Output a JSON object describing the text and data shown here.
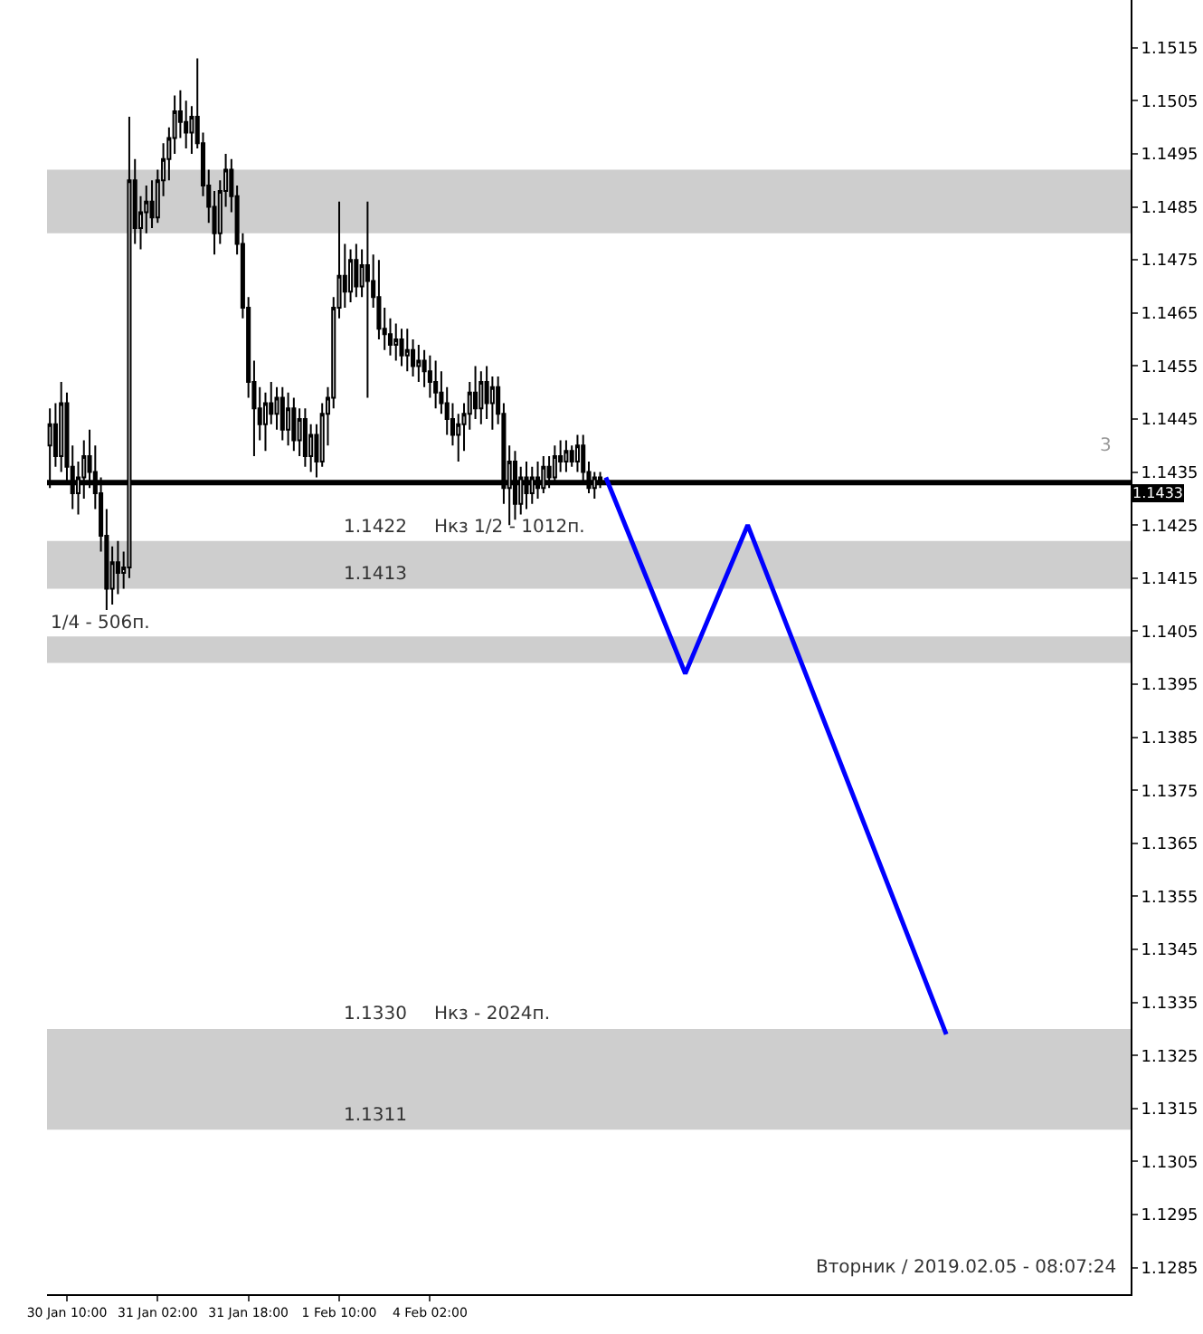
{
  "chart_data": {
    "type": "candlestick",
    "categories": [
      null,
      null,
      null,
      "30 Jan 10:00",
      null,
      null,
      null,
      null,
      null,
      null,
      null,
      null,
      null,
      null,
      null,
      null,
      null,
      null,
      null,
      "31 Jan 02:00",
      null,
      null,
      null,
      null,
      null,
      null,
      null,
      null,
      null,
      null,
      null,
      null,
      null,
      null,
      null,
      "31 Jan 18:00",
      null,
      null,
      null,
      null,
      null,
      null,
      null,
      null,
      null,
      null,
      null,
      null,
      null,
      null,
      null,
      "1 Feb 10:00",
      null,
      null,
      null,
      null,
      null,
      null,
      null,
      null,
      null,
      null,
      null,
      null,
      null,
      null,
      null,
      "4 Feb 02:00",
      null,
      null,
      null,
      null,
      null,
      null,
      null,
      null,
      null,
      null,
      null,
      null,
      null,
      null,
      null,
      null,
      null,
      null,
      null,
      null,
      null,
      null,
      null,
      null,
      null,
      null,
      null,
      null,
      null,
      null,
      null,
      null,
      null,
      null,
      null,
      null,
      null,
      null,
      null,
      null,
      null,
      null,
      null,
      null,
      null,
      null,
      null,
      null,
      null,
      null,
      null,
      null,
      null,
      null,
      null,
      null,
      null,
      null,
      null,
      null,
      null,
      null,
      null,
      null,
      null,
      null,
      null,
      null,
      null,
      null,
      null,
      null,
      null,
      null,
      null,
      null,
      null,
      null,
      null,
      null,
      null,
      null,
      null,
      null,
      null,
      null,
      null,
      null,
      null,
      null,
      null,
      null,
      null,
      null,
      null,
      null,
      null,
      null,
      null,
      null,
      null,
      null,
      null,
      null,
      null,
      null,
      null,
      null,
      null,
      null,
      null,
      null,
      null,
      null,
      null,
      null,
      null,
      null,
      null,
      null,
      null,
      null,
      null
    ],
    "ylim": [
      1.128,
      1.1524
    ],
    "yticks": [
      1.1285,
      1.1295,
      1.1305,
      1.1315,
      1.1325,
      1.1335,
      1.1345,
      1.1355,
      1.1365,
      1.1375,
      1.1385,
      1.1395,
      1.1405,
      1.1415,
      1.1425,
      1.1435,
      1.1445,
      1.1455,
      1.1465,
      1.1475,
      1.1485,
      1.1495,
      1.1505,
      1.1515
    ],
    "grid": false,
    "series": [
      {
        "color": "#000000",
        "ohlc": [
          [
            1.144,
            1.1447,
            1.1432,
            1.1444
          ],
          [
            1.1444,
            1.1448,
            1.1436,
            1.1438
          ],
          [
            1.1438,
            1.1452,
            1.1435,
            1.1448
          ],
          [
            1.1448,
            1.145,
            1.1433,
            1.1436
          ],
          [
            1.1436,
            1.144,
            1.1428,
            1.1431
          ],
          [
            1.1431,
            1.1437,
            1.1427,
            1.1434
          ],
          [
            1.1434,
            1.1441,
            1.143,
            1.1438
          ],
          [
            1.1438,
            1.1443,
            1.1432,
            1.1435
          ],
          [
            1.1435,
            1.144,
            1.1428,
            1.1431
          ],
          [
            1.1431,
            1.1434,
            1.142,
            1.1423
          ],
          [
            1.1423,
            1.1428,
            1.1409,
            1.1413
          ],
          [
            1.1413,
            1.1421,
            1.141,
            1.1418
          ],
          [
            1.1418,
            1.1422,
            1.1412,
            1.1416
          ],
          [
            1.1416,
            1.142,
            1.1413,
            1.1417
          ],
          [
            1.1417,
            1.1502,
            1.1415,
            1.149
          ],
          [
            1.149,
            1.1494,
            1.1478,
            1.1481
          ],
          [
            1.1481,
            1.1487,
            1.1477,
            1.1484
          ],
          [
            1.1484,
            1.1489,
            1.148,
            1.1486
          ],
          [
            1.1486,
            1.149,
            1.1481,
            1.1483
          ],
          [
            1.1483,
            1.1492,
            1.1482,
            1.149
          ],
          [
            1.149,
            1.1497,
            1.1487,
            1.1494
          ],
          [
            1.1494,
            1.15,
            1.149,
            1.1498
          ],
          [
            1.1498,
            1.1506,
            1.1495,
            1.1503
          ],
          [
            1.1503,
            1.1507,
            1.1498,
            1.1501
          ],
          [
            1.1501,
            1.1505,
            1.1496,
            1.1499
          ],
          [
            1.1499,
            1.1504,
            1.1495,
            1.1502
          ],
          [
            1.1502,
            1.1513,
            1.1496,
            1.1497
          ],
          [
            1.1497,
            1.1499,
            1.1487,
            1.1489
          ],
          [
            1.1489,
            1.1492,
            1.1482,
            1.1485
          ],
          [
            1.1485,
            1.1488,
            1.1476,
            1.148
          ],
          [
            1.148,
            1.149,
            1.1478,
            1.1488
          ],
          [
            1.1488,
            1.1495,
            1.1485,
            1.1492
          ],
          [
            1.1492,
            1.1494,
            1.1484,
            1.1487
          ],
          [
            1.1487,
            1.1489,
            1.1476,
            1.1478
          ],
          [
            1.1478,
            1.148,
            1.1464,
            1.1466
          ],
          [
            1.1466,
            1.1468,
            1.1449,
            1.1452
          ],
          [
            1.1452,
            1.1456,
            1.1438,
            1.1447
          ],
          [
            1.1447,
            1.1451,
            1.1441,
            1.1444
          ],
          [
            1.1444,
            1.145,
            1.1439,
            1.1448
          ],
          [
            1.1448,
            1.1452,
            1.1444,
            1.1446
          ],
          [
            1.1446,
            1.1451,
            1.1443,
            1.1449
          ],
          [
            1.1449,
            1.1451,
            1.1441,
            1.1443
          ],
          [
            1.1443,
            1.145,
            1.144,
            1.1447
          ],
          [
            1.1447,
            1.1449,
            1.1439,
            1.1441
          ],
          [
            1.1441,
            1.1447,
            1.1438,
            1.1445
          ],
          [
            1.1445,
            1.1447,
            1.1436,
            1.1438
          ],
          [
            1.1438,
            1.1444,
            1.1435,
            1.1442
          ],
          [
            1.1442,
            1.1444,
            1.1434,
            1.1437
          ],
          [
            1.1437,
            1.1448,
            1.1436,
            1.1446
          ],
          [
            1.1446,
            1.1451,
            1.144,
            1.1449
          ],
          [
            1.1449,
            1.1468,
            1.1447,
            1.1466
          ],
          [
            1.1466,
            1.1486,
            1.1464,
            1.1472
          ],
          [
            1.1472,
            1.1478,
            1.1466,
            1.1469
          ],
          [
            1.1469,
            1.1477,
            1.1467,
            1.1475
          ],
          [
            1.1475,
            1.1478,
            1.1468,
            1.147
          ],
          [
            1.147,
            1.1477,
            1.1468,
            1.1474
          ],
          [
            1.1474,
            1.1486,
            1.1449,
            1.1471
          ],
          [
            1.1471,
            1.1476,
            1.1466,
            1.1468
          ],
          [
            1.1468,
            1.1475,
            1.146,
            1.1462
          ],
          [
            1.1462,
            1.1466,
            1.1458,
            1.1461
          ],
          [
            1.1461,
            1.1464,
            1.1457,
            1.1459
          ],
          [
            1.1459,
            1.1463,
            1.1456,
            1.146
          ],
          [
            1.146,
            1.1462,
            1.1455,
            1.1457
          ],
          [
            1.1457,
            1.1462,
            1.1454,
            1.1458
          ],
          [
            1.1458,
            1.146,
            1.1453,
            1.1455
          ],
          [
            1.1455,
            1.1459,
            1.1452,
            1.1456
          ],
          [
            1.1456,
            1.1458,
            1.1451,
            1.1454
          ],
          [
            1.1454,
            1.1457,
            1.1449,
            1.1452
          ],
          [
            1.1452,
            1.1456,
            1.1447,
            1.145
          ],
          [
            1.145,
            1.1454,
            1.1446,
            1.1448
          ],
          [
            1.1448,
            1.1451,
            1.1442,
            1.1445
          ],
          [
            1.1445,
            1.1448,
            1.144,
            1.1442
          ],
          [
            1.1442,
            1.1446,
            1.1437,
            1.1444
          ],
          [
            1.1444,
            1.1448,
            1.1439,
            1.1446
          ],
          [
            1.1446,
            1.1452,
            1.1443,
            1.145
          ],
          [
            1.145,
            1.1455,
            1.1445,
            1.1447
          ],
          [
            1.1447,
            1.1454,
            1.1444,
            1.1452
          ],
          [
            1.1452,
            1.1455,
            1.1445,
            1.1448
          ],
          [
            1.1448,
            1.1453,
            1.1443,
            1.1451
          ],
          [
            1.1451,
            1.1453,
            1.1444,
            1.1446
          ],
          [
            1.1446,
            1.1448,
            1.1429,
            1.1432
          ],
          [
            1.1432,
            1.144,
            1.1425,
            1.1437
          ],
          [
            1.1437,
            1.1439,
            1.1426,
            1.1429
          ],
          [
            1.1429,
            1.1436,
            1.1427,
            1.1434
          ],
          [
            1.1434,
            1.1437,
            1.1428,
            1.1431
          ],
          [
            1.1431,
            1.1436,
            1.1429,
            1.1434
          ],
          [
            1.1434,
            1.1437,
            1.143,
            1.1432
          ],
          [
            1.1432,
            1.1438,
            1.1431,
            1.1436
          ],
          [
            1.1436,
            1.1438,
            1.1432,
            1.1434
          ],
          [
            1.1434,
            1.144,
            1.1433,
            1.1438
          ],
          [
            1.1438,
            1.1441,
            1.1435,
            1.1437
          ],
          [
            1.1437,
            1.1441,
            1.1435,
            1.1439
          ],
          [
            1.1439,
            1.144,
            1.1436,
            1.1437
          ],
          [
            1.1437,
            1.1442,
            1.1435,
            1.144
          ],
          [
            1.144,
            1.1442,
            1.1433,
            1.1435
          ],
          [
            1.1435,
            1.1437,
            1.1431,
            1.1432
          ],
          [
            1.1432,
            1.1435,
            1.143,
            1.1434
          ],
          [
            1.1434,
            1.1435,
            1.1432,
            1.1433
          ],
          null,
          null,
          null,
          null,
          null,
          null,
          null,
          null,
          null,
          null,
          null,
          null,
          null,
          null,
          null,
          null,
          null,
          null,
          null,
          null,
          null,
          null,
          null,
          null,
          null,
          null,
          null,
          null,
          null,
          null,
          null,
          null,
          null,
          null,
          null,
          null,
          null,
          null,
          null,
          null,
          null,
          null,
          null,
          null,
          null,
          null,
          null,
          null,
          null,
          null,
          null,
          null,
          null,
          null,
          null,
          null,
          null,
          null,
          null,
          null,
          null,
          null,
          null,
          null,
          null,
          null,
          null,
          null,
          null,
          null,
          null,
          null,
          null,
          null,
          null,
          null,
          null,
          null,
          null,
          null,
          null,
          null,
          null,
          null,
          null,
          null,
          null,
          null,
          null,
          null,
          null,
          null,
          null
        ]
      },
      {
        "type": "line",
        "color": "#0000ff",
        "line_style": "solid",
        "values": [
          null,
          null,
          null,
          null,
          null,
          null,
          null,
          null,
          null,
          null,
          null,
          null,
          null,
          null,
          null,
          null,
          null,
          null,
          null,
          null,
          null,
          null,
          null,
          null,
          null,
          null,
          null,
          null,
          null,
          null,
          null,
          null,
          null,
          null,
          null,
          null,
          null,
          null,
          null,
          null,
          null,
          null,
          null,
          null,
          null,
          null,
          null,
          null,
          null,
          null,
          null,
          null,
          null,
          null,
          null,
          null,
          null,
          null,
          null,
          null,
          null,
          null,
          null,
          null,
          null,
          null,
          null,
          null,
          null,
          null,
          null,
          null,
          null,
          null,
          null,
          null,
          null,
          null,
          null,
          null,
          null,
          null,
          null,
          null,
          null,
          null,
          null,
          null,
          null,
          null,
          null,
          null,
          null,
          null,
          null,
          null,
          null,
          null,
          1.1434,
          null,
          null,
          null,
          null,
          null,
          null,
          null,
          null,
          null,
          null,
          null,
          null,
          null,
          1.1397,
          null,
          null,
          null,
          null,
          null,
          null,
          null,
          null,
          null,
          null,
          1.1425,
          null,
          null,
          null,
          null,
          null,
          null,
          null,
          null,
          null,
          null,
          null,
          null,
          null,
          null,
          null,
          null,
          null,
          null,
          null,
          null,
          null,
          null,
          null,
          null,
          null,
          null,
          null,
          null,
          null,
          null,
          null,
          null,
          null,
          null,
          1.1329,
          null,
          null,
          null,
          null,
          null,
          null,
          null,
          null,
          null,
          null,
          null,
          null,
          null,
          null,
          null,
          null,
          null,
          null,
          null,
          null,
          null,
          null,
          null,
          null,
          null,
          null,
          null,
          null,
          null,
          null,
          null,
          null
        ]
      }
    ],
    "ref_lines": [
      {
        "axis": "y",
        "value": 1.1433,
        "label": "1.1433",
        "color": "#000000",
        "line_style": "solid"
      }
    ],
    "bands": [
      {
        "axis": "y",
        "from": 1.148,
        "to": 1.1492,
        "color": "#a6a6a6"
      },
      {
        "axis": "y",
        "from": 1.1399,
        "to": 1.1404,
        "color": "#a6a6a6"
      },
      {
        "axis": "y",
        "from": 1.1413,
        "to": 1.1422,
        "color": "#a6a6a6"
      },
      {
        "axis": "y",
        "from": 1.1311,
        "to": 1.133,
        "color": "#a6a6a6"
      }
    ],
    "annotations": [
      {
        "text": "1/4 - 506п.",
        "y": 1.1404
      },
      {
        "text": "Нкз 1/2 - 1012п.",
        "x": "4 Feb 02:00",
        "y": 1.1422
      },
      {
        "text": "Нкз - 2024п.",
        "x": "4 Feb 02:00",
        "y": 1.133
      },
      {
        "text": "1.1422",
        "x": "1 Feb 10:00",
        "y": 1.1422
      },
      {
        "text": "1.1413",
        "x": "1 Feb 10:00",
        "y": 1.1413
      },
      {
        "text": "1.1330",
        "x": "1 Feb 10:00",
        "y": 1.133
      },
      {
        "text": "1.1311",
        "x": "1 Feb 10:00",
        "y": 1.1311
      },
      "3",
      "Вторник / 2019.02.05 - 08:07:24"
    ]
  }
}
